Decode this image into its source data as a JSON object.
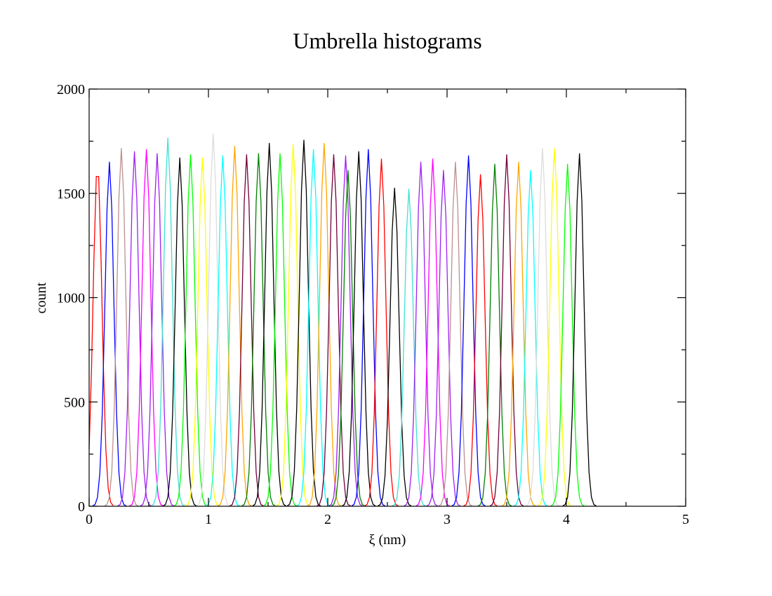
{
  "chart_data": {
    "type": "line",
    "title": "Umbrella histograms",
    "xlabel": "ξ (nm)",
    "ylabel": "count",
    "xlim": [
      0,
      5
    ],
    "ylim": [
      0,
      2000
    ],
    "x_ticks": [
      0,
      1,
      2,
      3,
      4,
      5
    ],
    "y_ticks": [
      0,
      500,
      1000,
      1500,
      2000
    ],
    "x_tick_labels": [
      "0",
      "1",
      "2",
      "3",
      "4",
      "5"
    ],
    "y_tick_labels": [
      "0",
      "500",
      "1000",
      "1500",
      "2000"
    ],
    "grid": false,
    "legend": "none",
    "series": [
      {
        "center": 0.07,
        "peak": 1640,
        "color": "#ff0000"
      },
      {
        "center": 0.17,
        "peak": 1650,
        "color": "#0000ff"
      },
      {
        "center": 0.27,
        "peak": 1715,
        "color": "#bc8f8f"
      },
      {
        "center": 0.38,
        "peak": 1700,
        "color": "#a020f0"
      },
      {
        "center": 0.48,
        "peak": 1710,
        "color": "#ff00ff"
      },
      {
        "center": 0.57,
        "peak": 1690,
        "color": "#a020f0"
      },
      {
        "center": 0.66,
        "peak": 1765,
        "color": "#40e0d0"
      },
      {
        "center": 0.76,
        "peak": 1670,
        "color": "#000000"
      },
      {
        "center": 0.85,
        "peak": 1685,
        "color": "#00ff00"
      },
      {
        "center": 0.95,
        "peak": 1670,
        "color": "#ffff00"
      },
      {
        "center": 1.04,
        "peak": 1785,
        "color": "#dcdcdc"
      },
      {
        "center": 1.12,
        "peak": 1680,
        "color": "#00ffff"
      },
      {
        "center": 1.22,
        "peak": 1725,
        "color": "#ffa500"
      },
      {
        "center": 1.32,
        "peak": 1685,
        "color": "#72003a"
      },
      {
        "center": 1.42,
        "peak": 1690,
        "color": "#008000"
      },
      {
        "center": 1.51,
        "peak": 1740,
        "color": "#000000"
      },
      {
        "center": 1.6,
        "peak": 1690,
        "color": "#00ff00"
      },
      {
        "center": 1.71,
        "peak": 1735,
        "color": "#ffff00"
      },
      {
        "center": 1.8,
        "peak": 1755,
        "color": "#000000"
      },
      {
        "center": 1.88,
        "peak": 1710,
        "color": "#00ffff"
      },
      {
        "center": 1.97,
        "peak": 1740,
        "color": "#ffa500"
      },
      {
        "center": 2.05,
        "peak": 1685,
        "color": "#72003a"
      },
      {
        "center": 2.15,
        "peak": 1680,
        "color": "#a020f0"
      },
      {
        "center": 2.17,
        "peak": 1610,
        "color": "#008000"
      },
      {
        "center": 2.26,
        "peak": 1700,
        "color": "#000000"
      },
      {
        "center": 2.34,
        "peak": 1710,
        "color": "#0000ff"
      },
      {
        "center": 2.45,
        "peak": 1665,
        "color": "#ff0000"
      },
      {
        "center": 2.56,
        "peak": 1525,
        "color": "#000000"
      },
      {
        "center": 2.68,
        "peak": 1520,
        "color": "#40e0d0"
      },
      {
        "center": 2.78,
        "peak": 1650,
        "color": "#a020f0"
      },
      {
        "center": 2.88,
        "peak": 1665,
        "color": "#ff00ff"
      },
      {
        "center": 2.97,
        "peak": 1610,
        "color": "#a020f0"
      },
      {
        "center": 3.07,
        "peak": 1650,
        "color": "#bc8f8f"
      },
      {
        "center": 3.18,
        "peak": 1680,
        "color": "#0000ff"
      },
      {
        "center": 3.28,
        "peak": 1590,
        "color": "#ff0000"
      },
      {
        "center": 3.4,
        "peak": 1640,
        "color": "#008000"
      },
      {
        "center": 3.5,
        "peak": 1685,
        "color": "#72003a"
      },
      {
        "center": 3.6,
        "peak": 1650,
        "color": "#ffa500"
      },
      {
        "center": 3.7,
        "peak": 1610,
        "color": "#00ffff"
      },
      {
        "center": 3.8,
        "peak": 1715,
        "color": "#dcdcdc"
      },
      {
        "center": 3.9,
        "peak": 1715,
        "color": "#ffff00"
      },
      {
        "center": 4.01,
        "peak": 1640,
        "color": "#00ff00"
      },
      {
        "center": 4.11,
        "peak": 1690,
        "color": "#000000"
      }
    ]
  }
}
